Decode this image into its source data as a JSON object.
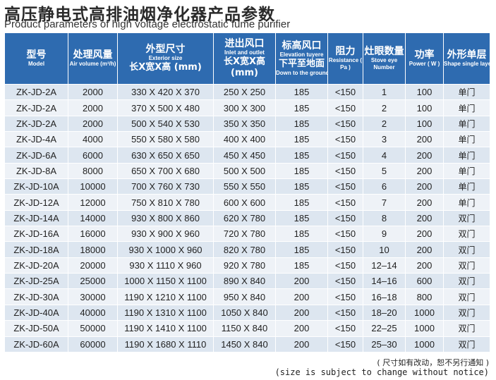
{
  "title_cn": "高压静电式高排油烟净化器产品参数",
  "title_en": "Product parameters of high voltage electrostatic fume purifier",
  "headers": [
    {
      "cn": "型号",
      "en": "Model",
      "cn2": ""
    },
    {
      "cn": "处理风量",
      "en": "Air volume (m³/h)",
      "cn2": ""
    },
    {
      "cn": "外型尺寸",
      "en": "Exterior size",
      "cn2": "长X宽X高 (mm)"
    },
    {
      "cn": "进出风口",
      "en": "Inlet and outlet",
      "cn2": "长X宽X高 (mm)"
    },
    {
      "cn": "标高风口",
      "en": "Elevation tuyere",
      "cn2": "下平至地面",
      "en2": "Down to the ground"
    },
    {
      "cn": "阻力",
      "en": "Resistance ( Pa )",
      "cn2": ""
    },
    {
      "cn": "灶眼数量",
      "en": "Stove eye Number",
      "cn2": ""
    },
    {
      "cn": "功率",
      "en": "Power ( W )",
      "cn2": ""
    },
    {
      "cn": "外形单层",
      "en": "Shape single layer",
      "cn2": ""
    }
  ],
  "rows": [
    [
      "ZK-JD-2A",
      "2000",
      "330 X 420 X 370",
      "250 X 250",
      "185",
      "<150",
      "1",
      "100",
      "单门"
    ],
    [
      "ZK-JD-2A",
      "2000",
      "370 X 500 X 480",
      "300 X 300",
      "185",
      "<150",
      "2",
      "100",
      "单门"
    ],
    [
      "ZK-JD-2A",
      "2000",
      "500 X 540 X 530",
      "350 X 350",
      "185",
      "<150",
      "2",
      "100",
      "单门"
    ],
    [
      "ZK-JD-4A",
      "4000",
      "550 X 580 X 580",
      "400 X 400",
      "185",
      "<150",
      "3",
      "200",
      "单门"
    ],
    [
      "ZK-JD-6A",
      "6000",
      "630 X 650 X 650",
      "450 X 450",
      "185",
      "<150",
      "4",
      "200",
      "单门"
    ],
    [
      "ZK-JD-8A",
      "8000",
      "650 X 700 X 680",
      "500 X 500",
      "185",
      "<150",
      "5",
      "200",
      "单门"
    ],
    [
      "ZK-JD-10A",
      "10000",
      "700 X 760 X 730",
      "550 X 550",
      "185",
      "<150",
      "6",
      "200",
      "单门"
    ],
    [
      "ZK-JD-12A",
      "12000",
      "750 X 810 X 780",
      "600 X 600",
      "185",
      "<150",
      "7",
      "200",
      "单门"
    ],
    [
      "ZK-JD-14A",
      "14000",
      "930 X 800 X 860",
      "620 X 780",
      "185",
      "<150",
      "8",
      "200",
      "双门"
    ],
    [
      "ZK-JD-16A",
      "16000",
      "930 X 900 X 960",
      "720 X 780",
      "185",
      "<150",
      "9",
      "200",
      "双门"
    ],
    [
      "ZK-JD-18A",
      "18000",
      "930 X 1000 X 960",
      "820 X 780",
      "185",
      "<150",
      "10",
      "200",
      "双门"
    ],
    [
      "ZK-JD-20A",
      "20000",
      "930 X 1110 X 960",
      "920 X 780",
      "185",
      "<150",
      "12–14",
      "200",
      "双门"
    ],
    [
      "ZK-JD-25A",
      "25000",
      "1000 X 1150 X 1100",
      "890 X 840",
      "200",
      "<150",
      "14–16",
      "600",
      "双门"
    ],
    [
      "ZK-JD-30A",
      "30000",
      "1190 X 1210 X 1100",
      "950 X 840",
      "200",
      "<150",
      "16–18",
      "800",
      "双门"
    ],
    [
      "ZK-JD-40A",
      "40000",
      "1190 X 1310 X 1100",
      "1050 X 840",
      "200",
      "<150",
      "18–20",
      "1000",
      "双门"
    ],
    [
      "ZK-JD-50A",
      "50000",
      "1190 X 1410 X 1100",
      "1150 X 840",
      "200",
      "<150",
      "22–25",
      "1000",
      "双门"
    ],
    [
      "ZK-JD-60A",
      "60000",
      "1190 X 1680 X 1110",
      "1450 X 840",
      "200",
      "<150",
      "25–30",
      "1000",
      "双门"
    ]
  ],
  "note_cn": "( 尺寸如有改动，恕不另行通知 )",
  "note_en": "(size is subject to change without notice)",
  "colors": {
    "header_bg": "#2e6bb0",
    "row_bg": "#dde6f0",
    "row_alt_bg": "#eef2f7"
  }
}
